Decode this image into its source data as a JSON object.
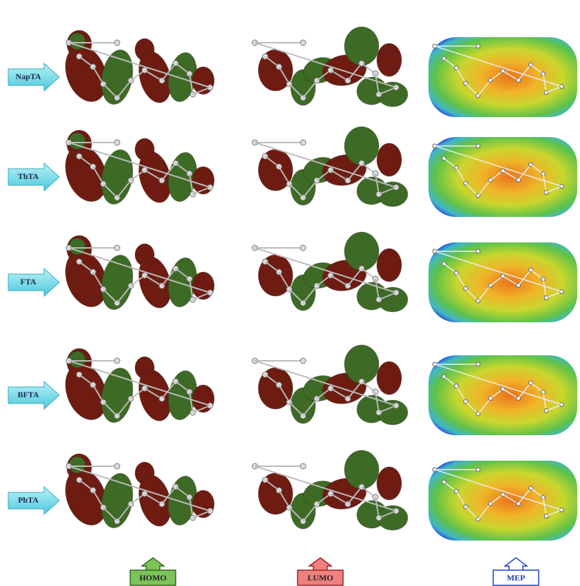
{
  "rows": [
    "NapTA",
    "ThTA",
    "FTA",
    "BFTA",
    "PhTA"
  ],
  "columns": [
    "HOMO",
    "LUMO",
    "MEP"
  ]
}
